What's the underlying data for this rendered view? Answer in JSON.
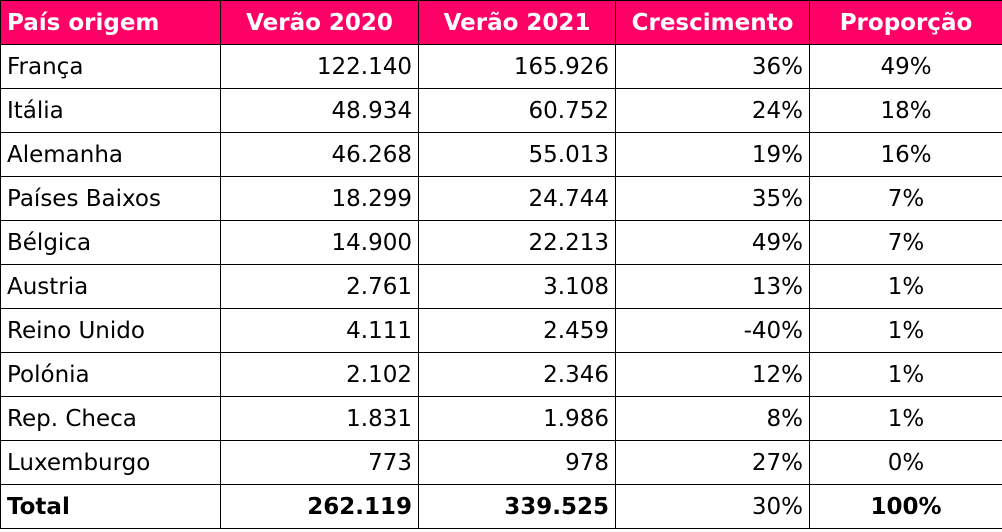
{
  "colors": {
    "header_background": "#ff0066",
    "header_text": "#ffffff",
    "border": "#000000"
  },
  "table": {
    "headers": [
      "País origem",
      "Verão 2020",
      "Verão 2021",
      "Crescimento",
      "Proporção"
    ],
    "rows": [
      [
        "França",
        "122.140",
        "165.926",
        "36%",
        "49%"
      ],
      [
        "Itália",
        "48.934",
        "60.752",
        "24%",
        "18%"
      ],
      [
        "Alemanha",
        "46.268",
        "55.013",
        "19%",
        "16%"
      ],
      [
        "Países Baixos",
        "18.299",
        "24.744",
        "35%",
        "7%"
      ],
      [
        "Bélgica",
        "14.900",
        "22.213",
        "49%",
        "7%"
      ],
      [
        "Austria",
        "2.761",
        "3.108",
        "13%",
        "1%"
      ],
      [
        "Reino Unido",
        "4.111",
        "2.459",
        "-40%",
        "1%"
      ],
      [
        "Polónia",
        "2.102",
        "2.346",
        "12%",
        "1%"
      ],
      [
        "Rep. Checa",
        "1.831",
        "1.986",
        "8%",
        "1%"
      ],
      [
        "Luxemburgo",
        "773",
        "978",
        "27%",
        "0%"
      ]
    ],
    "total": [
      "Total",
      "262.119",
      "339.525",
      "30%",
      "100%"
    ]
  }
}
